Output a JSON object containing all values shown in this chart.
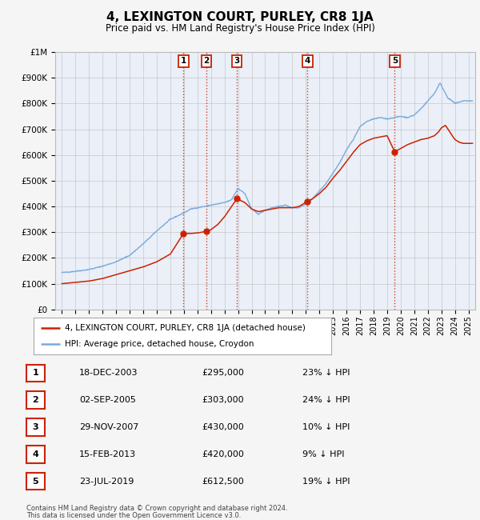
{
  "title": "4, LEXINGTON COURT, PURLEY, CR8 1JA",
  "subtitle": "Price paid vs. HM Land Registry's House Price Index (HPI)",
  "legend_line1": "4, LEXINGTON COURT, PURLEY, CR8 1JA (detached house)",
  "legend_line2": "HPI: Average price, detached house, Croydon",
  "footer1": "Contains HM Land Registry data © Crown copyright and database right 2024.",
  "footer2": "This data is licensed under the Open Government Licence v3.0.",
  "sales": [
    {
      "num": 1,
      "date": "18-DEC-2003",
      "price": "£295,000",
      "pct": "23% ↓ HPI",
      "x_year": 2003.97
    },
    {
      "num": 2,
      "date": "02-SEP-2005",
      "price": "£303,000",
      "pct": "24% ↓ HPI",
      "x_year": 2005.67
    },
    {
      "num": 3,
      "date": "29-NOV-2007",
      "price": "£430,000",
      "pct": "10% ↓ HPI",
      "x_year": 2007.91
    },
    {
      "num": 4,
      "date": "15-FEB-2013",
      "price": "£420,000",
      "pct": "9% ↓ HPI",
      "x_year": 2013.12
    },
    {
      "num": 5,
      "date": "23-JUL-2019",
      "price": "£612,500",
      "pct": "19% ↓ HPI",
      "x_year": 2019.56
    }
  ],
  "ylim": [
    0,
    1000000
  ],
  "xlim": [
    1994.5,
    2025.5
  ],
  "background_color": "#f5f5f5",
  "plot_bg": "#eaeff8",
  "grid_color": "#c8c8c8",
  "red_line_color": "#cc2200",
  "blue_line_color": "#7aaadd"
}
